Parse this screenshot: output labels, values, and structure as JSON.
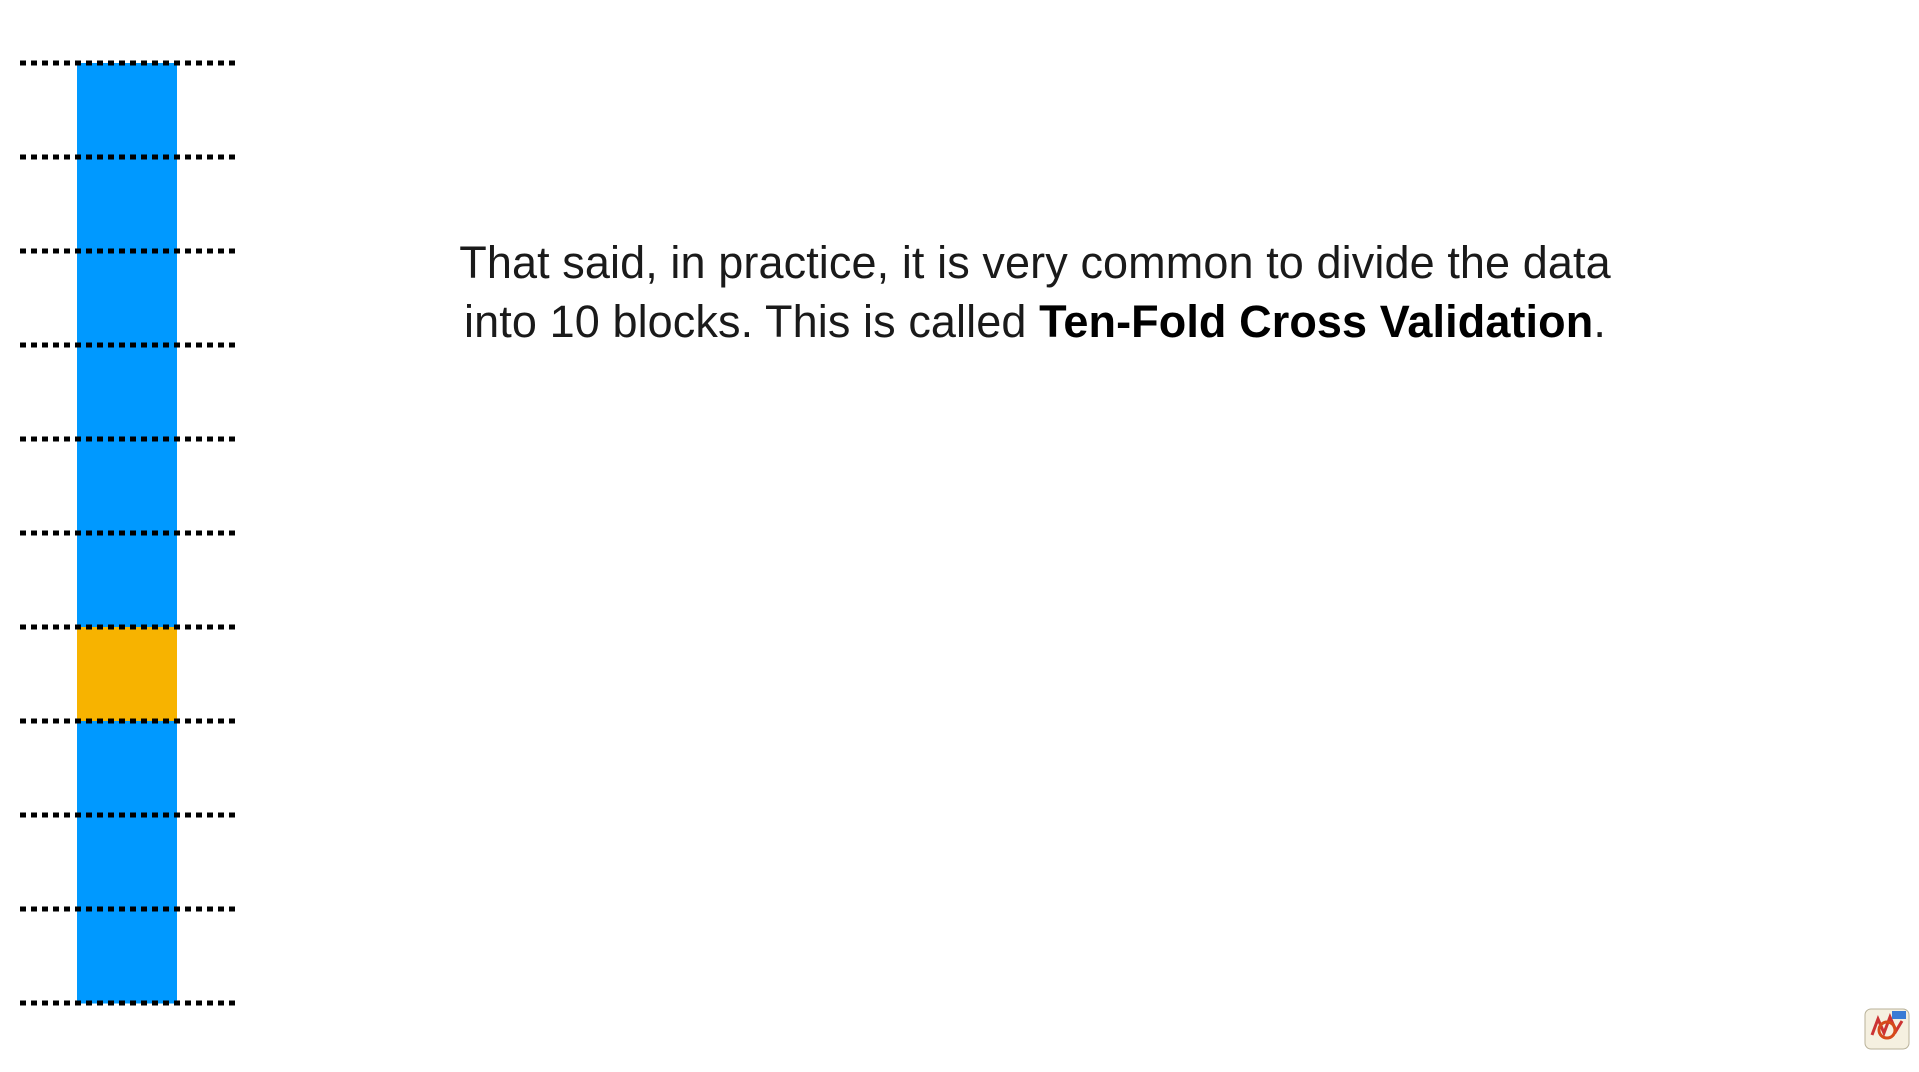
{
  "caption": {
    "before": "That said, in practice, it is very common to divide the data into 10 blocks. This is called ",
    "emphasis": "Ten-Fold Cross Validation",
    "after": "."
  },
  "diagram": {
    "block_count": 10,
    "highlighted_block": 7,
    "colors": {
      "block": "#0099ff",
      "highlighted": "#f7b300",
      "divider": "#000000",
      "background": "#ffffff"
    }
  },
  "logo": {
    "icon": "statquest-logo-icon"
  }
}
